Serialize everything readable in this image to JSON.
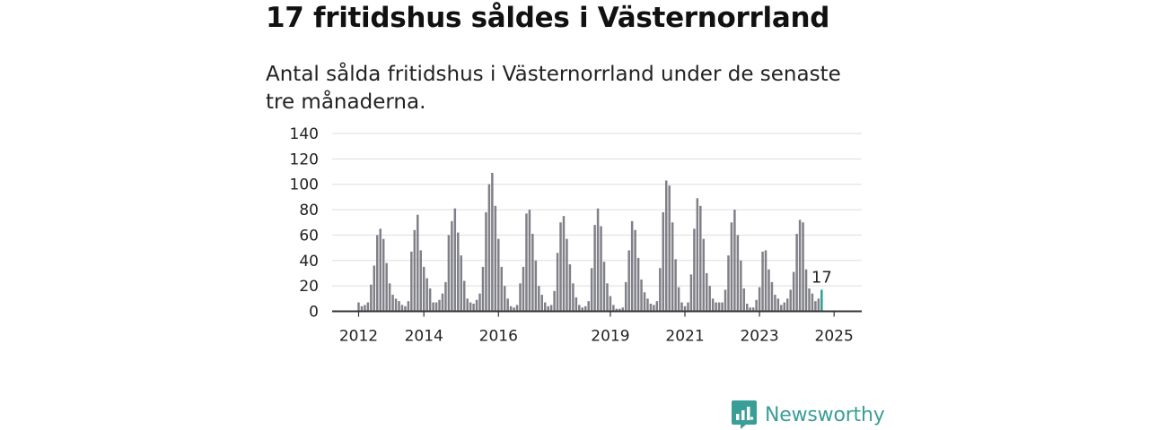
{
  "title": "17 fritidshus såldes i Västernorrland",
  "subtitle": "Antal sålda fritidshus i Västernorrland under de senaste tre månaderna.",
  "brand": {
    "name": "Newsworthy"
  },
  "colors": {
    "bar": "#808088",
    "highlight": "#2aa398",
    "brand": "#3a9e98",
    "grid": "#dddddd",
    "axis": "#333333"
  },
  "chart_data": {
    "type": "bar",
    "title": "17 fritidshus såldes i Västernorrland",
    "subtitle": "Antal sålda fritidshus i Västernorrland under de senaste tre månaderna.",
    "xlabel": "",
    "ylabel": "",
    "ylim": [
      0,
      140
    ],
    "yticks": [
      "0",
      "20",
      "40",
      "60",
      "80",
      "100",
      "120",
      "140"
    ],
    "xticks": [
      "2012",
      "2014",
      "2016",
      "2019",
      "2021",
      "2023",
      "2025"
    ],
    "grid": true,
    "highlight_label": "17",
    "period": "monthly, three-month rolling totals",
    "series": [
      {
        "values": [
          7,
          4,
          5,
          7,
          21,
          36,
          60,
          65,
          57,
          38,
          22,
          13,
          10,
          8,
          5,
          4,
          8,
          47,
          64,
          76,
          48,
          35,
          26,
          18,
          7,
          7,
          9,
          14,
          23,
          60,
          71,
          81,
          62,
          44,
          24,
          10,
          7,
          6,
          9,
          14,
          35,
          78,
          100,
          109,
          83,
          57,
          35,
          20,
          10,
          4,
          3,
          5,
          22,
          35,
          77,
          80,
          61,
          40,
          20,
          13,
          7,
          4,
          5,
          16,
          46,
          70,
          75,
          57,
          37,
          22,
          11,
          5,
          3,
          4,
          8,
          34,
          68,
          81,
          67,
          39,
          22,
          12,
          5,
          2,
          2,
          3,
          23,
          48,
          71,
          64,
          42,
          25,
          15,
          10,
          6,
          5,
          8,
          34,
          78,
          103,
          99,
          70,
          41,
          19,
          7,
          4,
          7,
          29,
          65,
          89,
          83,
          57,
          30,
          20,
          10,
          7,
          7,
          7,
          17,
          44,
          70,
          80,
          60,
          40,
          18,
          6,
          3,
          3,
          9,
          19,
          47,
          48,
          33,
          23,
          13,
          10,
          5,
          7,
          10,
          17,
          31,
          61,
          72,
          70,
          33,
          18,
          14,
          8,
          10,
          17
        ]
      }
    ]
  }
}
